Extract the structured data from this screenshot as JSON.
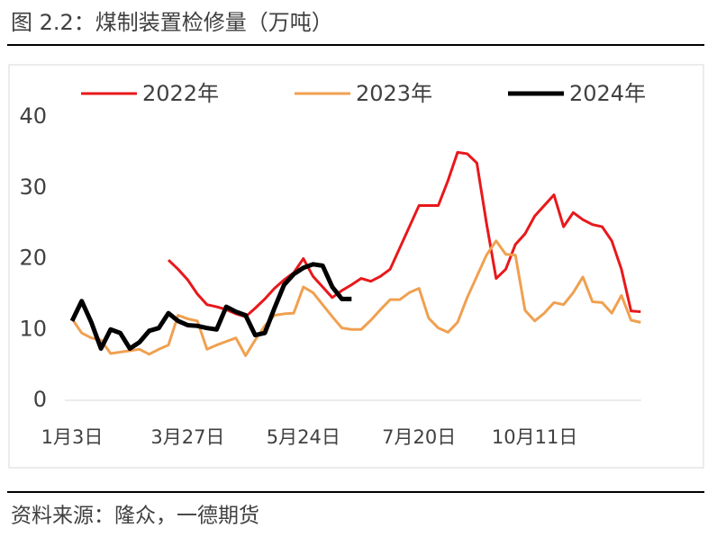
{
  "chart_data": {
    "type": "line",
    "title": "图 2.2：煤制装置检修量（万吨）",
    "source": "资料来源：隆众，一德期货",
    "categories": [
      "1月3日",
      null,
      null,
      null,
      null,
      null,
      null,
      null,
      null,
      null,
      null,
      null,
      "3月27日",
      null,
      null,
      null,
      null,
      null,
      null,
      null,
      null,
      null,
      null,
      null,
      "5月24日",
      null,
      null,
      null,
      null,
      null,
      null,
      null,
      null,
      null,
      null,
      null,
      "7月20日",
      null,
      null,
      null,
      null,
      null,
      null,
      null,
      null,
      null,
      null,
      null,
      "10月11日",
      null,
      null,
      null,
      null,
      null,
      null,
      null,
      null,
      null,
      null,
      null
    ],
    "series": [
      {
        "name": "2022年",
        "color": "#e8181b",
        "width": 3,
        "values": [
          null,
          null,
          null,
          null,
          null,
          null,
          null,
          null,
          null,
          null,
          19.8,
          18.5,
          17,
          15,
          13.5,
          13.2,
          12.8,
          12.2,
          11.8,
          13,
          14.3,
          15.8,
          17,
          18,
          20,
          17.5,
          16,
          14.5,
          15.5,
          16.3,
          17.2,
          16.8,
          17.5,
          18.5,
          21.5,
          24.5,
          27.5,
          27.5,
          27.5,
          31,
          35,
          34.8,
          33.5,
          25,
          17.2,
          18.5,
          22,
          23.5,
          26,
          27.5,
          29,
          24.5,
          26.5,
          25.5,
          24.8,
          24.5,
          22.5,
          18.5,
          12.6,
          12.5
        ]
      },
      {
        "name": "2023年",
        "color": "#f0a050",
        "width": 3,
        "values": [
          11.5,
          9.5,
          8.8,
          8.5,
          6.6,
          6.8,
          7,
          7.2,
          6.5,
          7.2,
          7.8,
          12,
          11.5,
          11.2,
          7.2,
          7.8,
          8.3,
          8.8,
          6.3,
          8.5,
          10.5,
          12,
          12.2,
          12.3,
          16,
          15.2,
          13.5,
          11.8,
          10.2,
          10,
          10,
          11.3,
          12.8,
          14.2,
          14.2,
          15.2,
          15.8,
          11.6,
          10.2,
          9.6,
          11,
          14.5,
          17.5,
          20.5,
          22.5,
          20.6,
          20.5,
          12.7,
          11.2,
          12.3,
          13.8,
          13.5,
          15.2,
          17.4,
          13.9,
          13.8,
          12.3,
          14.8,
          11.3,
          11
        ]
      },
      {
        "name": "2024年",
        "color": "#000000",
        "width": 5,
        "values": [
          11.2,
          14,
          11,
          7.3,
          10,
          9.5,
          7.3,
          8.2,
          9.8,
          10.2,
          12.3,
          11.2,
          10.6,
          10.5,
          10.2,
          10,
          13.2,
          12.5,
          12,
          9.2,
          9.5,
          13,
          16.3,
          17.8,
          18.7,
          19.2,
          19,
          16,
          14.3,
          14.3,
          null,
          null,
          null,
          null,
          null,
          null,
          null,
          null,
          null,
          null,
          null,
          null,
          null,
          null,
          null,
          null,
          null,
          null,
          null,
          null,
          null,
          null,
          null,
          null,
          null,
          null,
          null,
          null,
          null,
          null
        ]
      }
    ],
    "ylim": [
      0,
      40
    ],
    "yticks": [
      0,
      10,
      20,
      30,
      40
    ]
  }
}
